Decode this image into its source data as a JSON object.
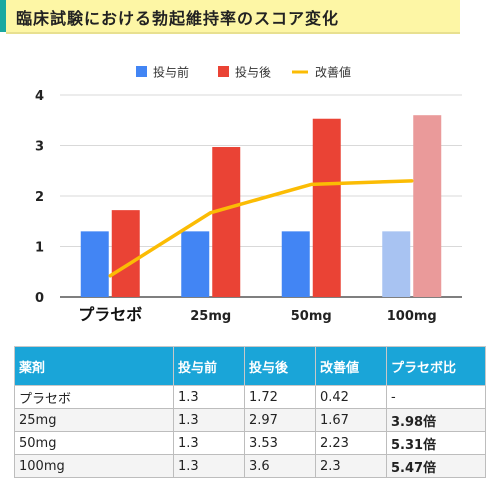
{
  "title": "臨床試験における勃起維持率のスコア変化",
  "chart_data": {
    "type": "bar",
    "categories": [
      "プラセボ",
      "25mg",
      "50mg",
      "100mg"
    ],
    "series": [
      {
        "name": "投与前",
        "kind": "bar",
        "values": [
          1.3,
          1.3,
          1.3,
          1.3
        ],
        "color": "#4285f4",
        "highlight_color": "#a8c3f2"
      },
      {
        "name": "投与後",
        "kind": "bar",
        "values": [
          1.72,
          2.97,
          3.53,
          3.6
        ],
        "color": "#ea4335",
        "highlight_color": "#ea9a9a"
      },
      {
        "name": "改善値",
        "kind": "line",
        "values": [
          0.42,
          1.67,
          2.23,
          2.3
        ],
        "color": "#fbbc04"
      }
    ],
    "highlight_category": "100mg",
    "ylim": [
      0,
      4
    ],
    "yticks": [
      0,
      1,
      2,
      3,
      4
    ],
    "xlabel": "",
    "ylabel": "",
    "grid": true,
    "legend_position": "top"
  },
  "table": {
    "headers": [
      "薬剤",
      "投与前",
      "投与後",
      "改善値",
      "プラセボ比"
    ],
    "rows": [
      {
        "drug": "プラセボ",
        "before": "1.3",
        "after": "1.72",
        "improvement": "0.42",
        "ratio": "-",
        "bold": false
      },
      {
        "drug": "25mg",
        "before": "1.3",
        "after": "2.97",
        "improvement": "1.67",
        "ratio": "3.98倍",
        "bold": true
      },
      {
        "drug": "50mg",
        "before": "1.3",
        "after": "3.53",
        "improvement": "2.23",
        "ratio": "5.31倍",
        "bold": true
      },
      {
        "drug": "100mg",
        "before": "1.3",
        "after": "3.6",
        "improvement": "2.3",
        "ratio": "5.47倍",
        "bold": true
      }
    ]
  }
}
